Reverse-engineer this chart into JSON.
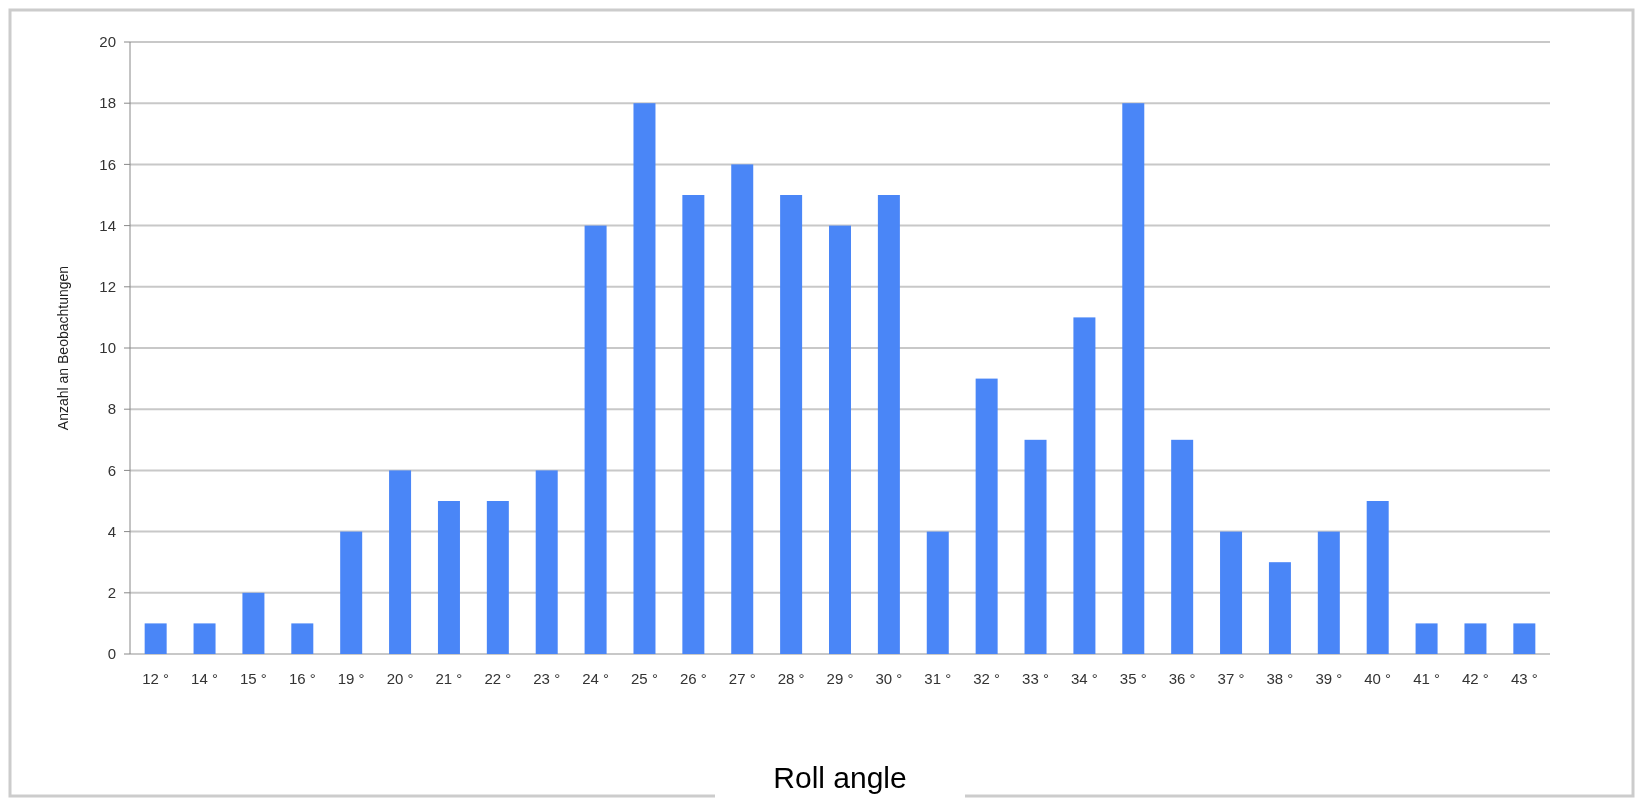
{
  "chart_data": {
    "type": "bar",
    "xlabel": "Roll angle",
    "ylabel": "Anzahl an Beobachtungen",
    "categories": [
      "12 °",
      "14 °",
      "15 °",
      "16 °",
      "19 °",
      "20 °",
      "21 °",
      "22 °",
      "23 °",
      "24 °",
      "25 °",
      "26 °",
      "27 °",
      "28 °",
      "29 °",
      "30 °",
      "31 °",
      "32 °",
      "33 °",
      "34 °",
      "35 °",
      "36 °",
      "37 °",
      "38 °",
      "39 °",
      "40 °",
      "41 °",
      "42 °",
      "43 °"
    ],
    "values": [
      1,
      1,
      2,
      1,
      4,
      6,
      5,
      5,
      6,
      14,
      18,
      15,
      16,
      15,
      14,
      15,
      4,
      9,
      7,
      11,
      18,
      7,
      4,
      3,
      4,
      5,
      1,
      1,
      1
    ],
    "color": "#4a86f7",
    "ylim": [
      0,
      20
    ],
    "yticks": [
      0,
      2,
      4,
      6,
      8,
      10,
      12,
      14,
      16,
      18,
      20
    ],
    "grid": "y"
  }
}
